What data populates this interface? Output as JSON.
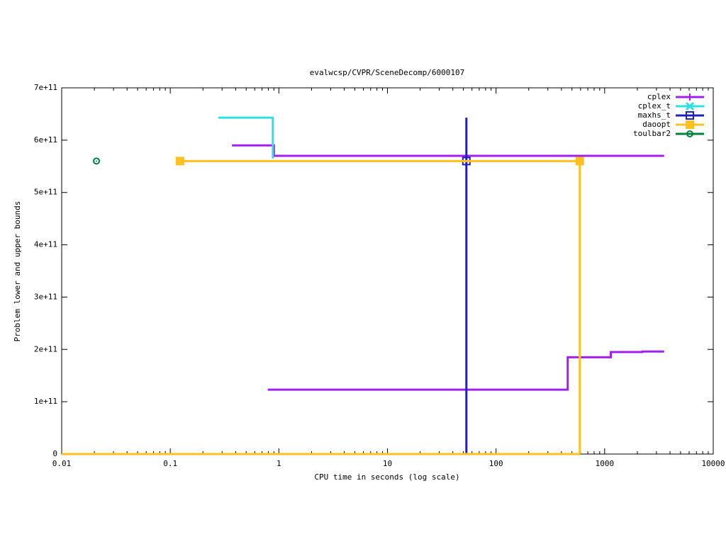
{
  "chart_data": {
    "type": "line",
    "title": "evalwcsp/CVPR/SceneDecomp/6000107",
    "x_label": "CPU time in seconds (log scale)",
    "y_label": "Problem lower and upper bounds",
    "xscale": "log",
    "xlim": [
      0.01,
      10000
    ],
    "xticks": [
      0.01,
      0.1,
      1,
      10,
      100,
      1000,
      10000
    ],
    "ylim": [
      0,
      700000000000
    ],
    "yticks": [
      0,
      {
        "value": 100000000000,
        "label": "1e+11"
      },
      {
        "value": 200000000000,
        "label": "2e+11"
      },
      {
        "value": 300000000000,
        "label": "3e+11"
      },
      {
        "value": 400000000000,
        "label": "4e+11"
      },
      {
        "value": 500000000000,
        "label": "5e+11"
      },
      {
        "value": 600000000000,
        "label": "6e+11"
      },
      {
        "value": 700000000000,
        "label": "7e+11"
      }
    ],
    "legend": "top-right",
    "series": [
      {
        "name": "cplex",
        "color": "#a020f0",
        "marker": "plus",
        "x": [
          0.37,
          0.9,
          0.9,
          3530,
          null,
          0.79,
          457,
          457,
          1140,
          1140,
          2220,
          2220,
          3530
        ],
        "values": [
          590000000000,
          590000000000,
          570000000000,
          570000000000,
          null,
          123000000000,
          123000000000,
          185000000000,
          185000000000,
          195000000000,
          195000000000,
          196000000000,
          196000000000
        ]
      },
      {
        "name": "cplex_t",
        "color": "#30e0e0",
        "marker": "cross",
        "x": [
          0.277,
          0.88,
          0.88
        ],
        "values": [
          643000000000,
          643000000000,
          565000000000
        ]
      },
      {
        "name": "maxhs_t",
        "color": "#2020c0",
        "marker": "square",
        "x": [
          53.3,
          53.3
        ],
        "values": [
          0,
          643000000000
        ],
        "marker_x": [
          53.3
        ],
        "marker_values": [
          560000000000
        ]
      },
      {
        "name": "daoopt",
        "color": "#ffc020",
        "marker": "filled-square",
        "x": [
          0.123,
          590,
          590,
          null,
          0.01,
          590
        ],
        "values": [
          560000000000,
          560000000000,
          0,
          null,
          0,
          0
        ],
        "marker_x": [
          0.123,
          590
        ],
        "marker_values": [
          560000000000,
          560000000000
        ]
      },
      {
        "name": "toulbar2",
        "color": "#008040",
        "marker": "circle",
        "x": [],
        "values": [],
        "marker_x": [
          0.0209
        ],
        "marker_values": [
          560000000000
        ]
      }
    ]
  }
}
